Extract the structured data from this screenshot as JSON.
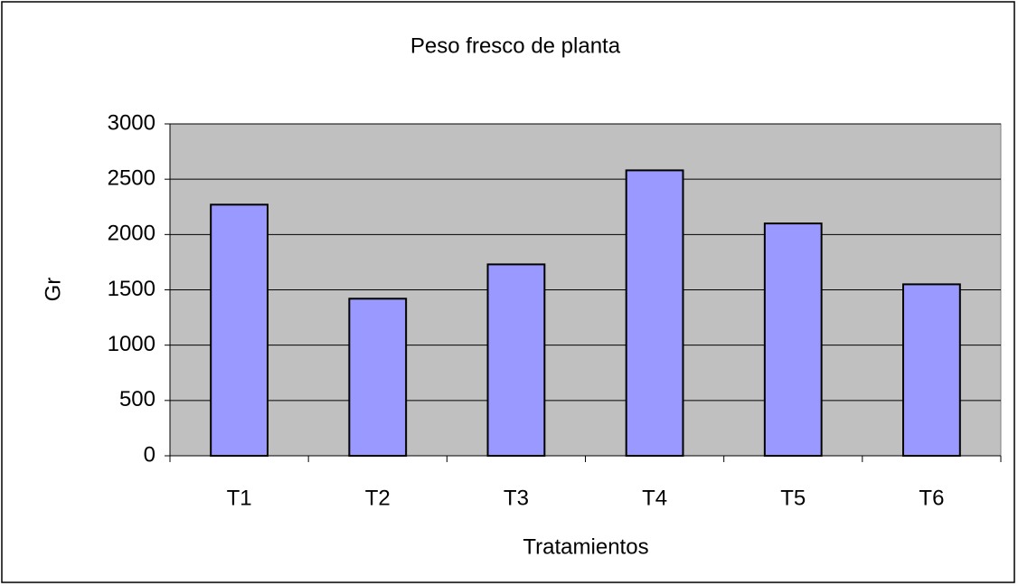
{
  "chart_data": {
    "type": "bar",
    "title": "Peso fresco de planta",
    "x_label": "Tratamientos",
    "y_label": "Gr",
    "categories": [
      "T1",
      "T2",
      "T3",
      "T4",
      "T5",
      "T6"
    ],
    "values": [
      2270,
      1420,
      1730,
      2580,
      2100,
      1550
    ],
    "color": "#9999ff",
    "plot_background": "#c0c0c0",
    "ylim": [
      0,
      3000
    ],
    "yticks": [
      0,
      500,
      1000,
      1500,
      2000,
      2500,
      3000
    ],
    "grid": true
  }
}
